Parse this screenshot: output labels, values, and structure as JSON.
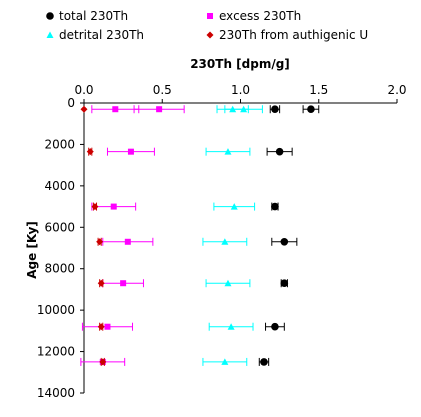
{
  "chart_data": {
    "type": "scatter",
    "title": "",
    "xlabel": "230Th [dpm/g]",
    "ylabel": "Age [Ky]",
    "xlim": [
      0,
      2
    ],
    "ylim": [
      0,
      14000
    ],
    "x_ticks": [
      "0.0",
      "0.5",
      "1.0",
      "1.5",
      "2.0"
    ],
    "y_ticks": [
      "0",
      "2000",
      "4000",
      "6000",
      "8000",
      "10000",
      "12000",
      "14000"
    ],
    "x_axis_position": "top",
    "y_axis_inverted": true,
    "grid": false,
    "legend_position": "top",
    "series": [
      {
        "name": "total 230Th",
        "marker": "circle",
        "color": "#000000",
        "points": [
          {
            "y": 300,
            "x": 1.45,
            "err": 0.05
          },
          {
            "y": 300,
            "x": 1.22,
            "err": 0.03
          },
          {
            "y": 2350,
            "x": 1.25,
            "err": 0.08
          },
          {
            "y": 5000,
            "x": 1.22,
            "err": 0.02
          },
          {
            "y": 6700,
            "x": 1.28,
            "err": 0.08
          },
          {
            "y": 8700,
            "x": 1.28,
            "err": 0.02
          },
          {
            "y": 10800,
            "x": 1.22,
            "err": 0.06
          },
          {
            "y": 12500,
            "x": 1.15,
            "err": 0.03
          }
        ]
      },
      {
        "name": "excess 230Th",
        "marker": "square",
        "color": "#ff00ff",
        "points": [
          {
            "y": 300,
            "x": 0.48,
            "err": 0.16
          },
          {
            "y": 300,
            "x": 0.2,
            "err": 0.15
          },
          {
            "y": 2350,
            "x": 0.3,
            "err": 0.15
          },
          {
            "y": 5000,
            "x": 0.19,
            "err": 0.14
          },
          {
            "y": 6700,
            "x": 0.28,
            "err": 0.16
          },
          {
            "y": 8700,
            "x": 0.25,
            "err": 0.13
          },
          {
            "y": 10800,
            "x": 0.15,
            "err": 0.16
          },
          {
            "y": 12500,
            "x": 0.12,
            "err": 0.14
          }
        ]
      },
      {
        "name": "detrital 230Th",
        "marker": "triangle",
        "color": "#00ffff",
        "points": [
          {
            "y": 300,
            "x": 1.02,
            "err": 0.12
          },
          {
            "y": 300,
            "x": 0.95,
            "err": 0.1
          },
          {
            "y": 2350,
            "x": 0.92,
            "err": 0.14
          },
          {
            "y": 5000,
            "x": 0.96,
            "err": 0.13
          },
          {
            "y": 6700,
            "x": 0.9,
            "err": 0.14
          },
          {
            "y": 8700,
            "x": 0.92,
            "err": 0.14
          },
          {
            "y": 10800,
            "x": 0.94,
            "err": 0.14
          },
          {
            "y": 12500,
            "x": 0.9,
            "err": 0.14
          }
        ]
      },
      {
        "name": "230Th from authigenic U",
        "marker": "diamond",
        "color": "#cc0000",
        "points": [
          {
            "y": 300,
            "x": 0.0,
            "err": 0.0
          },
          {
            "y": 2350,
            "x": 0.04,
            "err": 0.01
          },
          {
            "y": 5000,
            "x": 0.07,
            "err": 0.01
          },
          {
            "y": 6700,
            "x": 0.1,
            "err": 0.01
          },
          {
            "y": 8700,
            "x": 0.11,
            "err": 0.01
          },
          {
            "y": 10800,
            "x": 0.11,
            "err": 0.01
          },
          {
            "y": 12500,
            "x": 0.12,
            "err": 0.01
          }
        ]
      }
    ]
  }
}
